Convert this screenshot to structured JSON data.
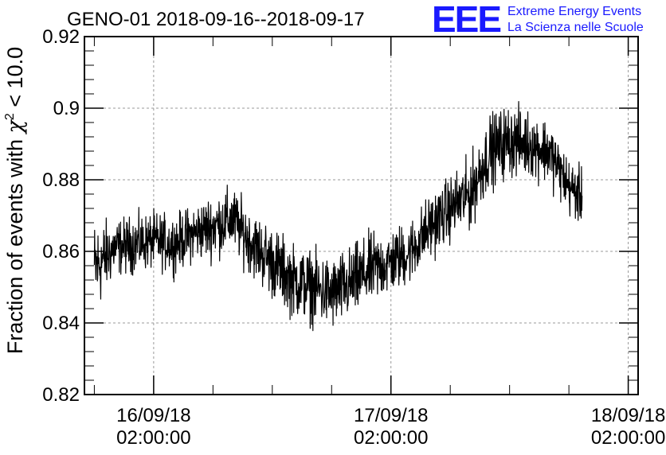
{
  "chart_data": {
    "type": "line",
    "title": "GENO-01 2018-09-16--2018-09-17",
    "ylabel_parts": [
      "Fraction of events with ",
      "χ",
      "2",
      " < 10.0"
    ],
    "xlabel": "",
    "ylim": [
      0.82,
      0.92
    ],
    "yticks": [
      {
        "value": 0.82,
        "label": "0.82"
      },
      {
        "value": 0.84,
        "label": "0.84"
      },
      {
        "value": 0.86,
        "label": "0.86"
      },
      {
        "value": 0.88,
        "label": "0.88"
      },
      {
        "value": 0.9,
        "label": "0.9"
      },
      {
        "value": 0.92,
        "label": "0.92"
      }
    ],
    "xlim": [
      "2018-09-15T19:00:00",
      "2018-09-18T03:00:00"
    ],
    "xticks": [
      {
        "value": "2018-09-16T02:00:00",
        "date": "16/09/18",
        "time": "02:00:00"
      },
      {
        "value": "2018-09-17T02:00:00",
        "date": "17/09/18",
        "time": "02:00:00"
      },
      {
        "value": "2018-09-18T02:00:00",
        "date": "18/09/18",
        "time": "02:00:00"
      }
    ],
    "grid": true,
    "series": [
      {
        "color": "#000000",
        "x": [
          "2018-09-15T20:00:00",
          "2018-09-15T22:00:00",
          "2018-09-16T00:00:00",
          "2018-09-16T02:00:00",
          "2018-09-16T04:00:00",
          "2018-09-16T06:00:00",
          "2018-09-16T08:00:00",
          "2018-09-16T10:00:00",
          "2018-09-16T12:00:00",
          "2018-09-16T14:00:00",
          "2018-09-16T16:00:00",
          "2018-09-16T18:00:00",
          "2018-09-16T20:00:00",
          "2018-09-16T22:00:00",
          "2018-09-17T00:00:00",
          "2018-09-17T02:00:00",
          "2018-09-17T04:00:00",
          "2018-09-17T06:00:00",
          "2018-09-17T08:00:00",
          "2018-09-17T10:00:00",
          "2018-09-17T12:00:00",
          "2018-09-17T14:00:00",
          "2018-09-17T16:00:00",
          "2018-09-17T18:00:00",
          "2018-09-17T20:00:00",
          "2018-09-17T21:20:00"
        ],
        "y": [
          0.855,
          0.861,
          0.862,
          0.863,
          0.862,
          0.865,
          0.867,
          0.869,
          0.862,
          0.857,
          0.852,
          0.85,
          0.848,
          0.851,
          0.855,
          0.857,
          0.86,
          0.867,
          0.872,
          0.876,
          0.888,
          0.891,
          0.89,
          0.888,
          0.878,
          0.875
        ],
        "spread": [
          0.012,
          0.007,
          0.007,
          0.007,
          0.007,
          0.007,
          0.008,
          0.008,
          0.008,
          0.009,
          0.009,
          0.009,
          0.009,
          0.009,
          0.009,
          0.008,
          0.008,
          0.008,
          0.008,
          0.009,
          0.009,
          0.009,
          0.008,
          0.008,
          0.007,
          0.007
        ]
      }
    ]
  },
  "logo": {
    "letters": "EEE",
    "line1": "Extreme Energy Events",
    "line2": "La Scienza nelle Scuole"
  }
}
